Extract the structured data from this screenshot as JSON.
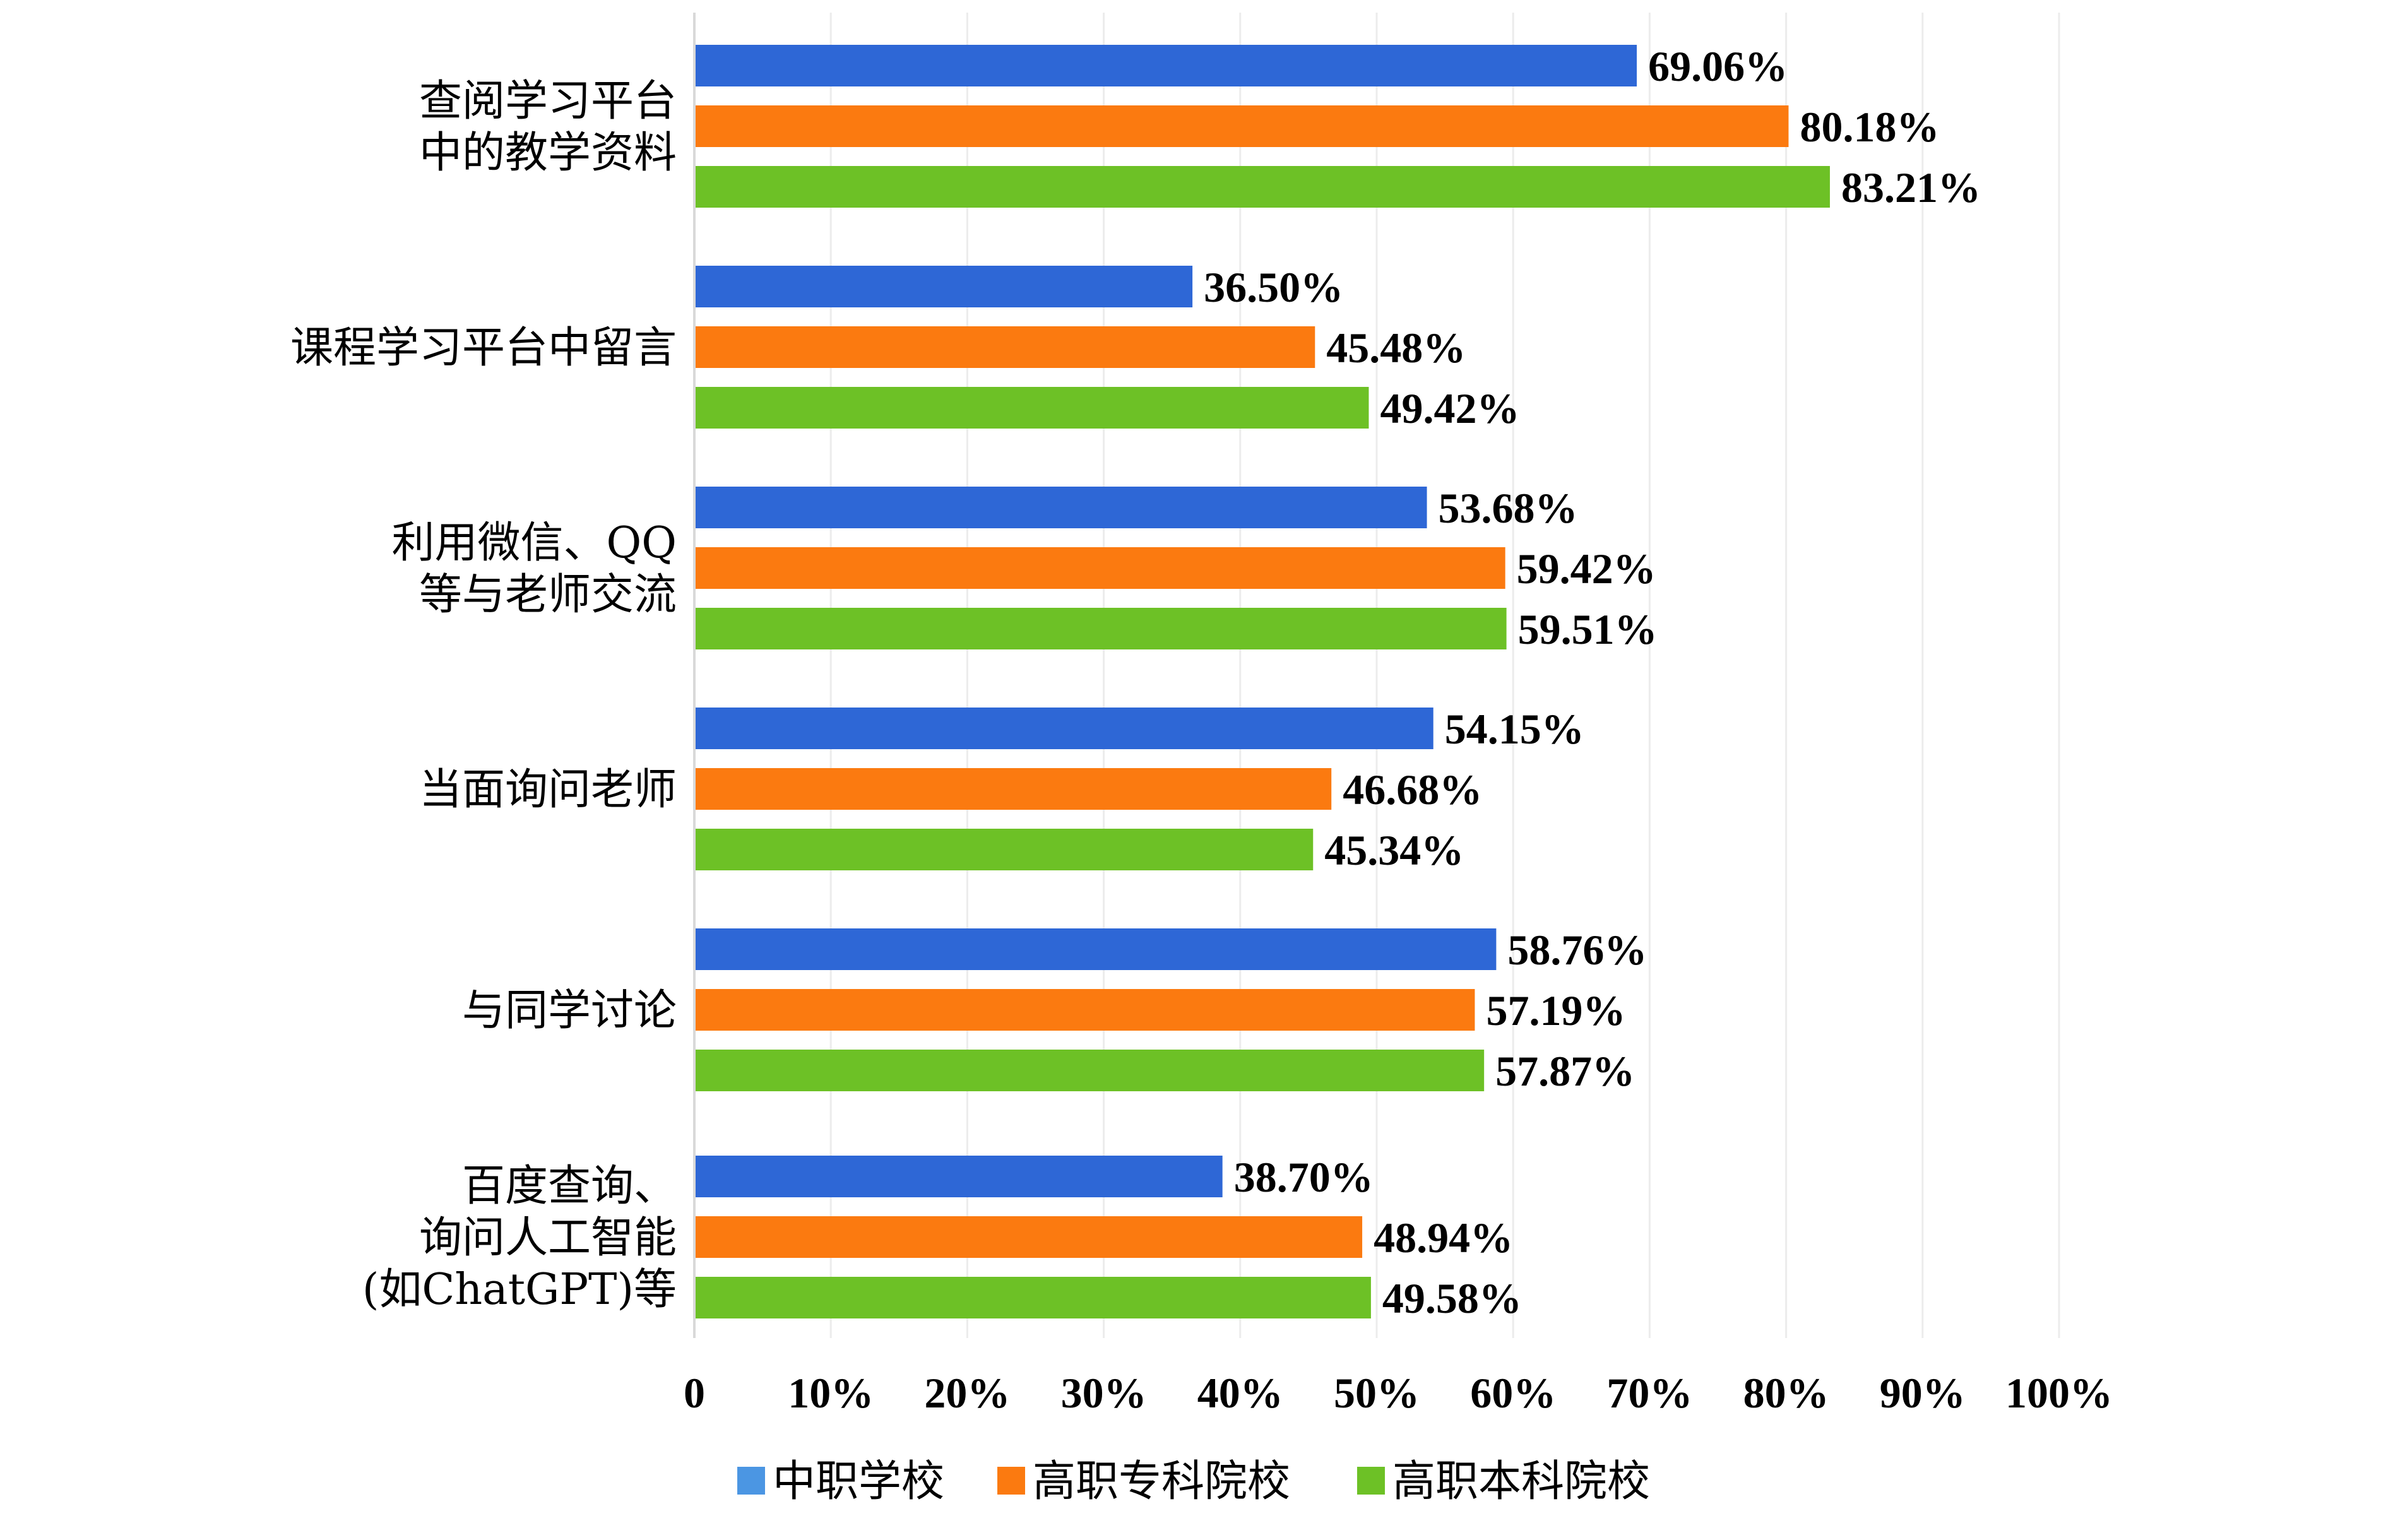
{
  "chart_data": {
    "type": "bar",
    "orientation": "horizontal",
    "categories": [
      [
        "查阅学习平台",
        "中的教学资料"
      ],
      [
        "课程学习平台中留言"
      ],
      [
        "利用微信、QQ",
        "等与老师交流"
      ],
      [
        "当面询问老师"
      ],
      [
        "与同学讨论"
      ],
      [
        "百度查询、",
        "询问人工智能",
        "(如ChatGPT)等"
      ]
    ],
    "series": [
      {
        "name": "中职学校",
        "color": "#2e67d6",
        "legend_color": "#4b96e3",
        "values": [
          69.06,
          36.5,
          53.68,
          54.15,
          58.76,
          38.7
        ],
        "labels": [
          "69.06%",
          "36.50%",
          "53.68%",
          "54.15%",
          "58.76%",
          "38.70%"
        ]
      },
      {
        "name": "高职专科院校",
        "color": "#fb7a10",
        "legend_color": "#fb7a10",
        "values": [
          80.18,
          45.48,
          59.42,
          46.68,
          57.19,
          48.94
        ],
        "labels": [
          "80.18%",
          "45.48%",
          "59.42%",
          "46.68%",
          "57.19%",
          "48.94%"
        ]
      },
      {
        "name": "高职本科院校",
        "color": "#6dc126",
        "legend_color": "#6dc126",
        "values": [
          83.21,
          49.42,
          59.51,
          45.34,
          57.87,
          49.58
        ],
        "labels": [
          "83.21%",
          "49.42%",
          "59.51%",
          "45.34%",
          "57.87%",
          "49.58%"
        ]
      }
    ],
    "x_ticks": [
      "0",
      "10%",
      "20%",
      "30%",
      "40%",
      "50%",
      "60%",
      "70%",
      "80%",
      "90%",
      "100%"
    ],
    "xlim": [
      0,
      100
    ],
    "grid": true,
    "legend_position": "bottom"
  }
}
